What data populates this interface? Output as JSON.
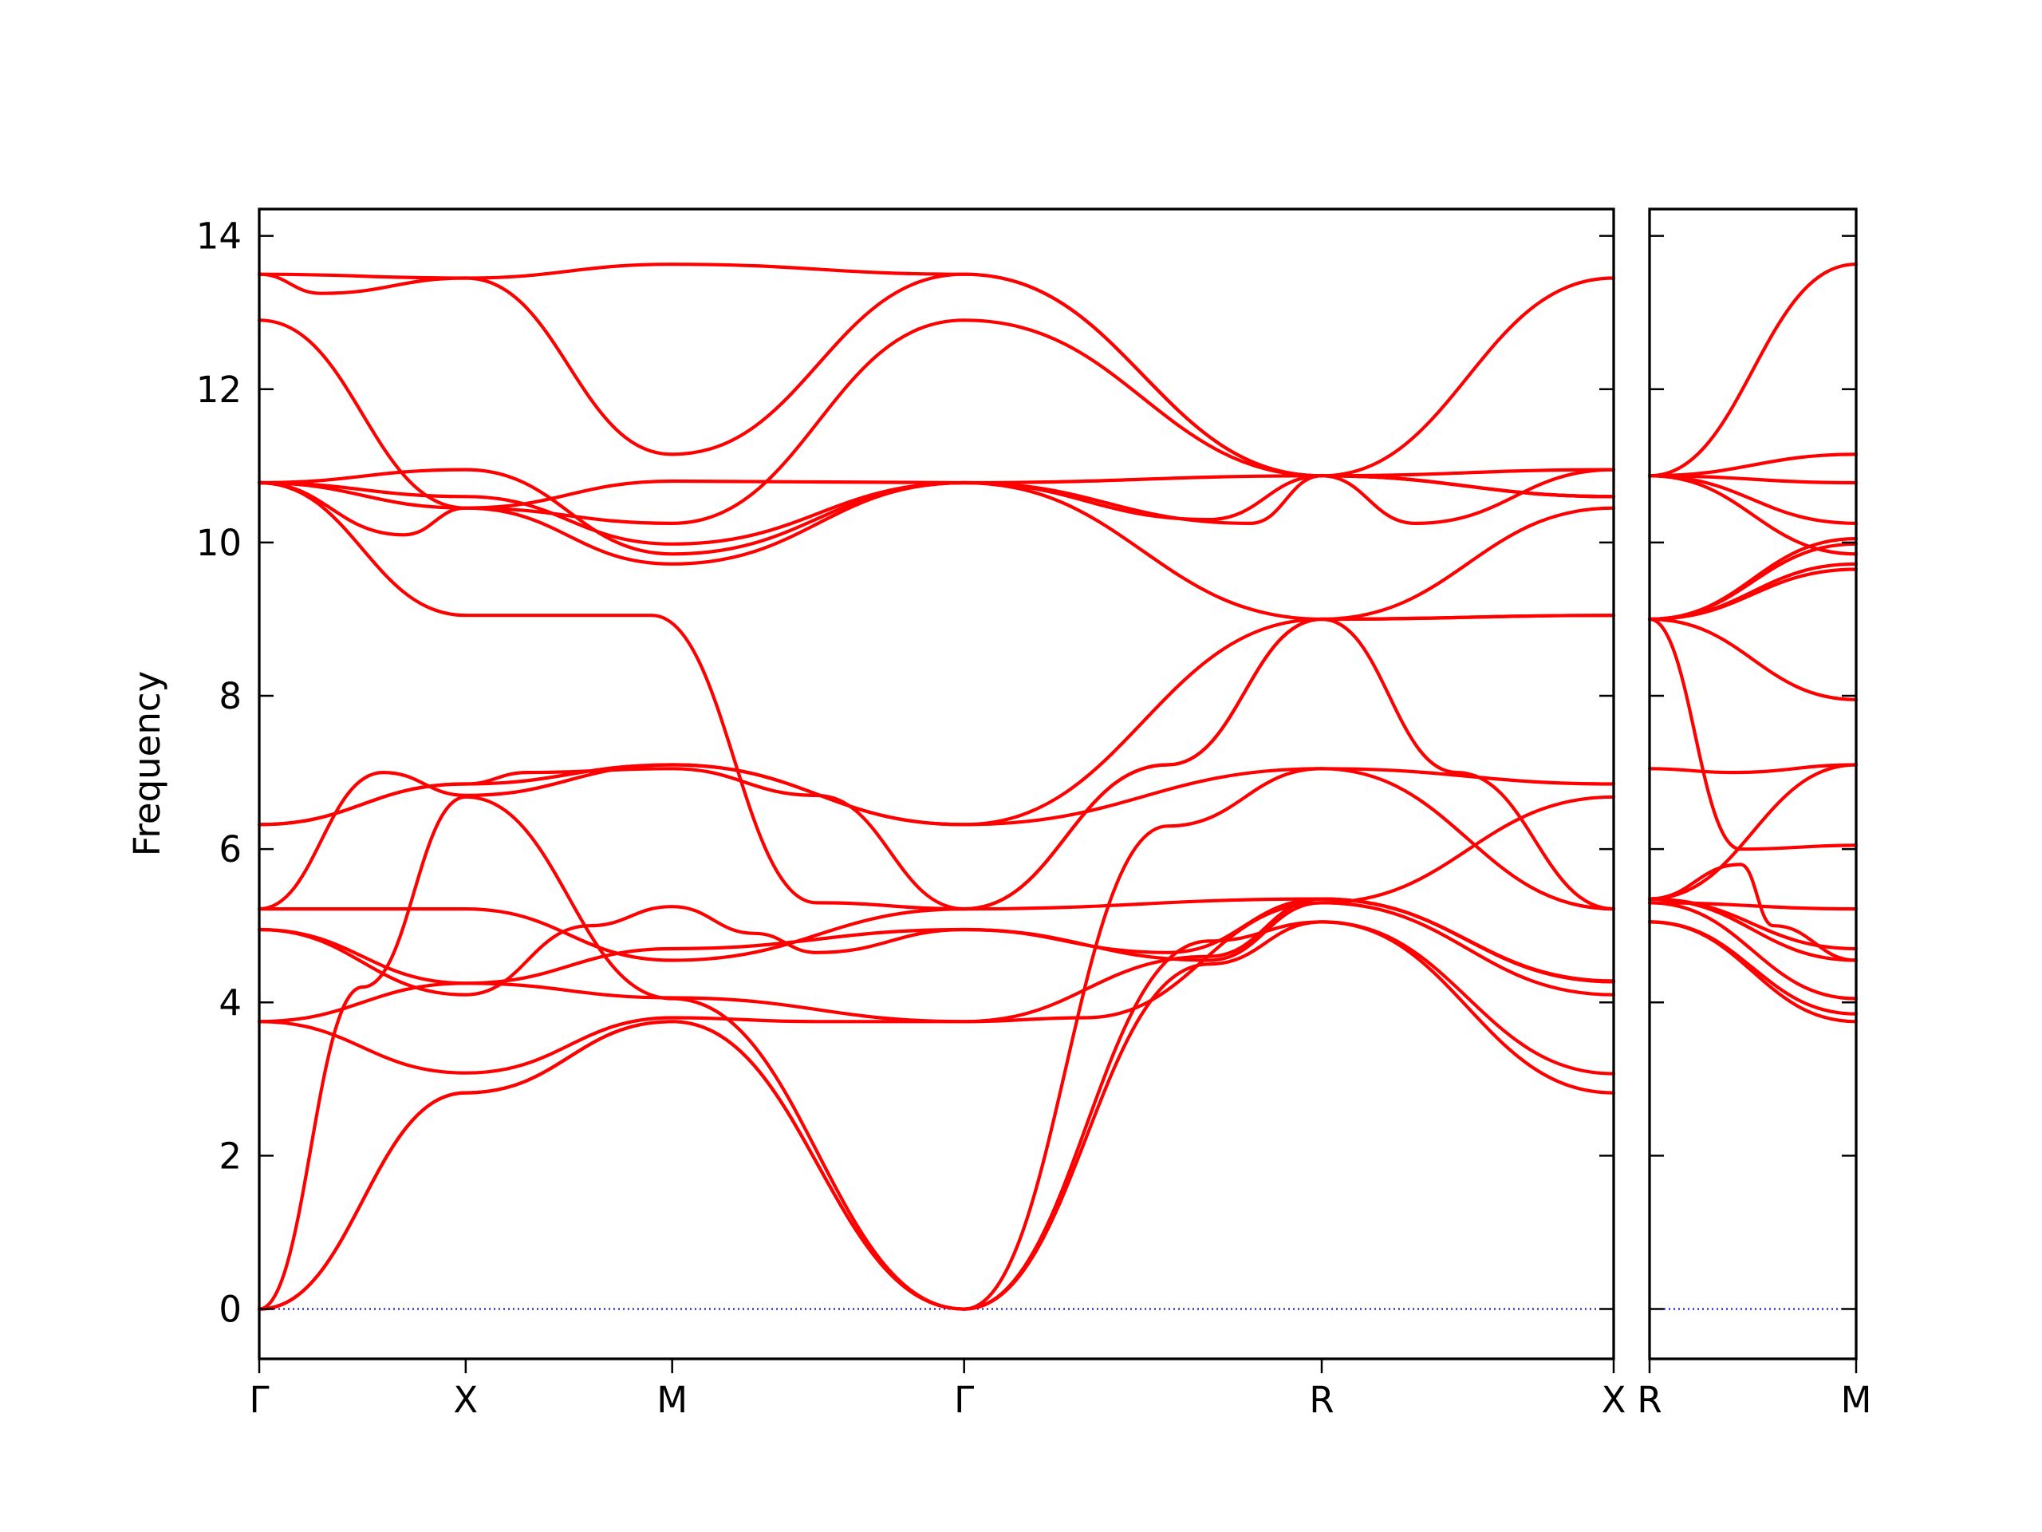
{
  "chart_data": {
    "type": "line",
    "title": "",
    "ylabel": "Frequency",
    "ylim": [
      -0.65,
      14.35
    ],
    "yticks": [
      0,
      2,
      4,
      6,
      8,
      10,
      12,
      14
    ],
    "grid": false,
    "legend": "none",
    "colors": {
      "bands": "#ff0000",
      "zero_line": "#0000cc",
      "frame": "#000000"
    },
    "panels": [
      {
        "kpoints": [
          {
            "label": "Γ",
            "x": 0
          },
          {
            "label": "X",
            "x": 0.5
          },
          {
            "label": "M",
            "x": 1.0
          },
          {
            "label": "Γ",
            "x": 1.707
          },
          {
            "label": "R",
            "x": 2.573
          },
          {
            "label": "X",
            "x": 3.28
          }
        ],
        "series": [
          {
            "x": [
              0,
              0.5,
              1.0,
              1.707,
              2.3,
              2.573,
              3.28
            ],
            "y": [
              0,
              2.82,
              3.75,
              0,
              4.5,
              5.05,
              2.82
            ]
          },
          {
            "x": [
              0,
              0.5,
              1.0,
              1.707,
              2.3,
              2.573,
              3.28
            ],
            "y": [
              0,
              2.82,
              3.75,
              0,
              4.8,
              5.05,
              3.07
            ]
          },
          {
            "x": [
              0,
              0.25,
              0.5,
              1.0,
              1.707,
              2.2,
              2.573,
              3.28
            ],
            "y": [
              0,
              4.2,
              6.68,
              4.05,
              0,
              6.3,
              7.05,
              5.22
            ]
          },
          {
            "x": [
              0,
              0.5,
              1.0,
              1.35,
              1.707,
              2.0,
              2.573,
              3.28
            ],
            "y": [
              3.75,
              3.08,
              3.8,
              3.75,
              3.75,
              3.8,
              5.3,
              4.1
            ]
          },
          {
            "x": [
              0,
              0.5,
              1.0,
              1.707,
              2.3,
              2.573,
              3.28
            ],
            "y": [
              3.75,
              4.25,
              4.06,
              3.75,
              4.6,
              5.35,
              4.28
            ]
          },
          {
            "x": [
              0,
              0.5,
              0.8,
              1.0,
              1.2,
              1.35,
              1.707,
              2.3,
              2.573,
              3.28
            ],
            "y": [
              4.95,
              4.1,
              5.0,
              5.25,
              4.9,
              4.65,
              4.95,
              4.55,
              5.3,
              6.68
            ]
          },
          {
            "x": [
              0,
              0.5,
              1.0,
              1.707,
              2.2,
              2.573,
              3.28
            ],
            "y": [
              4.95,
              4.25,
              4.7,
              4.95,
              4.65,
              5.35,
              4.27
            ]
          },
          {
            "x": [
              0,
              0.5,
              1.0,
              1.707,
              2.573,
              3.28
            ],
            "y": [
              5.22,
              5.22,
              4.55,
              5.22,
              5.35,
              4.27
            ]
          },
          {
            "x": [
              0,
              0.3,
              0.5,
              1.0,
              1.707,
              2.573,
              3.28
            ],
            "y": [
              5.22,
              7.0,
              6.7,
              7.1,
              6.32,
              7.05,
              6.85
            ]
          },
          {
            "x": [
              0,
              0.5,
              1.0,
              1.707,
              2.573,
              3.28
            ],
            "y": [
              6.32,
              6.85,
              7.1,
              6.32,
              9.0,
              9.05
            ]
          },
          {
            "x": [
              0,
              0.5,
              0.65,
              1.0,
              1.35,
              1.707,
              2.2,
              2.573,
              3.28
            ],
            "y": [
              6.32,
              6.85,
              7.0,
              7.05,
              6.7,
              5.22,
              7.1,
              9.0,
              10.45
            ]
          },
          {
            "x": [
              0,
              0.5,
              0.95,
              1.35,
              1.707,
              2.2,
              2.573,
              2.9,
              3.28
            ],
            "y": [
              10.78,
              9.05,
              9.05,
              5.3,
              5.22,
              7.1,
              9.0,
              7.0,
              5.22
            ]
          },
          {
            "x": [
              0,
              0.35,
              0.5,
              1.0,
              1.707,
              2.573,
              3.28
            ],
            "y": [
              10.78,
              10.1,
              10.45,
              9.72,
              10.78,
              9.0,
              9.05
            ]
          },
          {
            "x": [
              0,
              0.5,
              1.0,
              1.707,
              2.573,
              3.28
            ],
            "y": [
              10.78,
              10.95,
              9.85,
              10.78,
              10.87,
              10.95
            ]
          },
          {
            "x": [
              0,
              0.5,
              1.0,
              1.707,
              2.3,
              2.573,
              3.28
            ],
            "y": [
              10.78,
              10.6,
              9.98,
              10.78,
              10.3,
              10.87,
              10.6
            ]
          },
          {
            "x": [
              0,
              0.5,
              1.0,
              1.707,
              2.4,
              2.573,
              3.28
            ],
            "y": [
              10.78,
              10.45,
              10.8,
              10.78,
              10.25,
              10.87,
              10.6
            ]
          },
          {
            "x": [
              0,
              0.5,
              1.0,
              1.707,
              2.573,
              2.8,
              3.28
            ],
            "y": [
              12.9,
              10.45,
              10.25,
              12.9,
              10.87,
              10.25,
              10.95
            ]
          },
          {
            "x": [
              0,
              0.5,
              1.0,
              1.707,
              2.573,
              3.28
            ],
            "y": [
              13.5,
              13.45,
              11.15,
              13.5,
              10.87,
              13.45
            ]
          },
          {
            "x": [
              0,
              0.15,
              0.5,
              1.0,
              1.707,
              2.573,
              3.28
            ],
            "y": [
              13.5,
              13.25,
              13.45,
              13.63,
              13.5,
              10.87,
              10.6
            ]
          }
        ]
      },
      {
        "kpoints": [
          {
            "label": "R",
            "x": 0
          },
          {
            "label": "M",
            "x": 0.5
          }
        ],
        "series": [
          {
            "x": [
              0,
              0.5
            ],
            "y": [
              5.05,
              3.75
            ]
          },
          {
            "x": [
              0,
              0.5
            ],
            "y": [
              5.05,
              3.85
            ]
          },
          {
            "x": [
              0,
              0.5
            ],
            "y": [
              5.3,
              4.05
            ]
          },
          {
            "x": [
              0,
              0.5
            ],
            "y": [
              5.35,
              4.55
            ]
          },
          {
            "x": [
              0,
              0.5
            ],
            "y": [
              5.35,
              4.7
            ]
          },
          {
            "x": [
              0,
              0.5
            ],
            "y": [
              5.3,
              5.22
            ]
          },
          {
            "x": [
              0,
              0.22,
              0.3,
              0.5
            ],
            "y": [
              5.35,
              5.8,
              5.0,
              4.55
            ]
          },
          {
            "x": [
              0,
              0.5
            ],
            "y": [
              5.35,
              7.1
            ]
          },
          {
            "x": [
              0,
              0.2,
              0.5
            ],
            "y": [
              7.05,
              7.0,
              7.1
            ]
          },
          {
            "x": [
              0,
              0.22,
              0.5
            ],
            "y": [
              9.0,
              6.0,
              6.05
            ]
          },
          {
            "x": [
              0,
              0.5
            ],
            "y": [
              9.0,
              7.95
            ]
          },
          {
            "x": [
              0,
              0.5
            ],
            "y": [
              9.0,
              9.65
            ]
          },
          {
            "x": [
              0,
              0.5
            ],
            "y": [
              9.0,
              9.72
            ]
          },
          {
            "x": [
              0,
              0.5
            ],
            "y": [
              9.0,
              9.98
            ]
          },
          {
            "x": [
              0,
              0.5
            ],
            "y": [
              9.0,
              10.05
            ]
          },
          {
            "x": [
              0,
              0.5
            ],
            "y": [
              10.87,
              9.85
            ]
          },
          {
            "x": [
              0,
              0.5
            ],
            "y": [
              10.87,
              10.25
            ]
          },
          {
            "x": [
              0,
              0.5
            ],
            "y": [
              10.87,
              10.78
            ]
          },
          {
            "x": [
              0,
              0.5
            ],
            "y": [
              10.87,
              11.15
            ]
          },
          {
            "x": [
              0,
              0.5
            ],
            "y": [
              10.87,
              13.63
            ]
          }
        ]
      }
    ]
  }
}
